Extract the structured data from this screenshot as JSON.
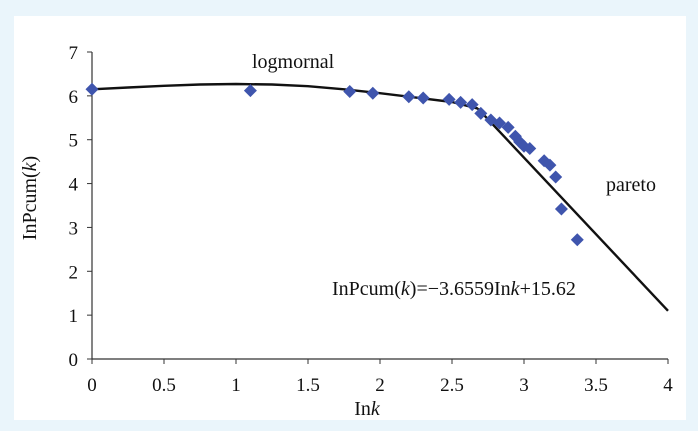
{
  "chart_data": {
    "type": "scatter",
    "xlabel_prefix": "In",
    "xlabel_var": "k",
    "ylabel_prefix": "InPcum(",
    "ylabel_var": "k",
    "ylabel_suffix": ")",
    "xlim": [
      0,
      4
    ],
    "ylim": [
      0,
      7
    ],
    "x_ticks": [
      "0",
      "0.5",
      "1",
      "1.5",
      "2",
      "2.5",
      "3",
      "3.5",
      "4"
    ],
    "y_ticks": [
      "0",
      "1",
      "2",
      "3",
      "4",
      "5",
      "6",
      "7"
    ],
    "grid": false,
    "annotations": {
      "lognormal_label": "logmornal",
      "pareto_label": "pareto",
      "equation_prefix": "InPcum(",
      "equation_var": "k",
      "equation_suffix": ")=−3.6559In",
      "equation_var2": "k",
      "equation_tail": "+15.62"
    },
    "series": [
      {
        "type": "scatter",
        "marker": "diamond",
        "color": "#3f55ad",
        "points": [
          [
            0.0,
            6.15
          ],
          [
            1.1,
            6.12
          ],
          [
            1.79,
            6.1
          ],
          [
            1.95,
            6.06
          ],
          [
            2.2,
            5.98
          ],
          [
            2.3,
            5.95
          ],
          [
            2.48,
            5.92
          ],
          [
            2.56,
            5.85
          ],
          [
            2.64,
            5.8
          ],
          [
            2.7,
            5.6
          ],
          [
            2.77,
            5.45
          ],
          [
            2.83,
            5.38
          ],
          [
            2.89,
            5.28
          ],
          [
            2.94,
            5.08
          ],
          [
            2.97,
            4.95
          ],
          [
            3.0,
            4.85
          ],
          [
            3.04,
            4.8
          ],
          [
            3.14,
            4.52
          ],
          [
            3.18,
            4.42
          ],
          [
            3.22,
            4.15
          ],
          [
            3.26,
            3.42
          ],
          [
            3.37,
            2.72
          ]
        ]
      },
      {
        "type": "line",
        "label": "logmornal",
        "color": "#111111",
        "points": [
          [
            0.0,
            6.15
          ],
          [
            0.25,
            6.19
          ],
          [
            0.5,
            6.23
          ],
          [
            0.75,
            6.26
          ],
          [
            1.0,
            6.27
          ],
          [
            1.25,
            6.26
          ],
          [
            1.5,
            6.22
          ],
          [
            1.75,
            6.15
          ],
          [
            2.0,
            6.06
          ],
          [
            2.25,
            5.96
          ],
          [
            2.5,
            5.86
          ],
          [
            2.68,
            5.71
          ]
        ]
      },
      {
        "type": "line",
        "label": "pareto",
        "color": "#111111",
        "points": [
          [
            2.68,
            5.71
          ],
          [
            4.0,
            1.1
          ]
        ]
      }
    ]
  }
}
